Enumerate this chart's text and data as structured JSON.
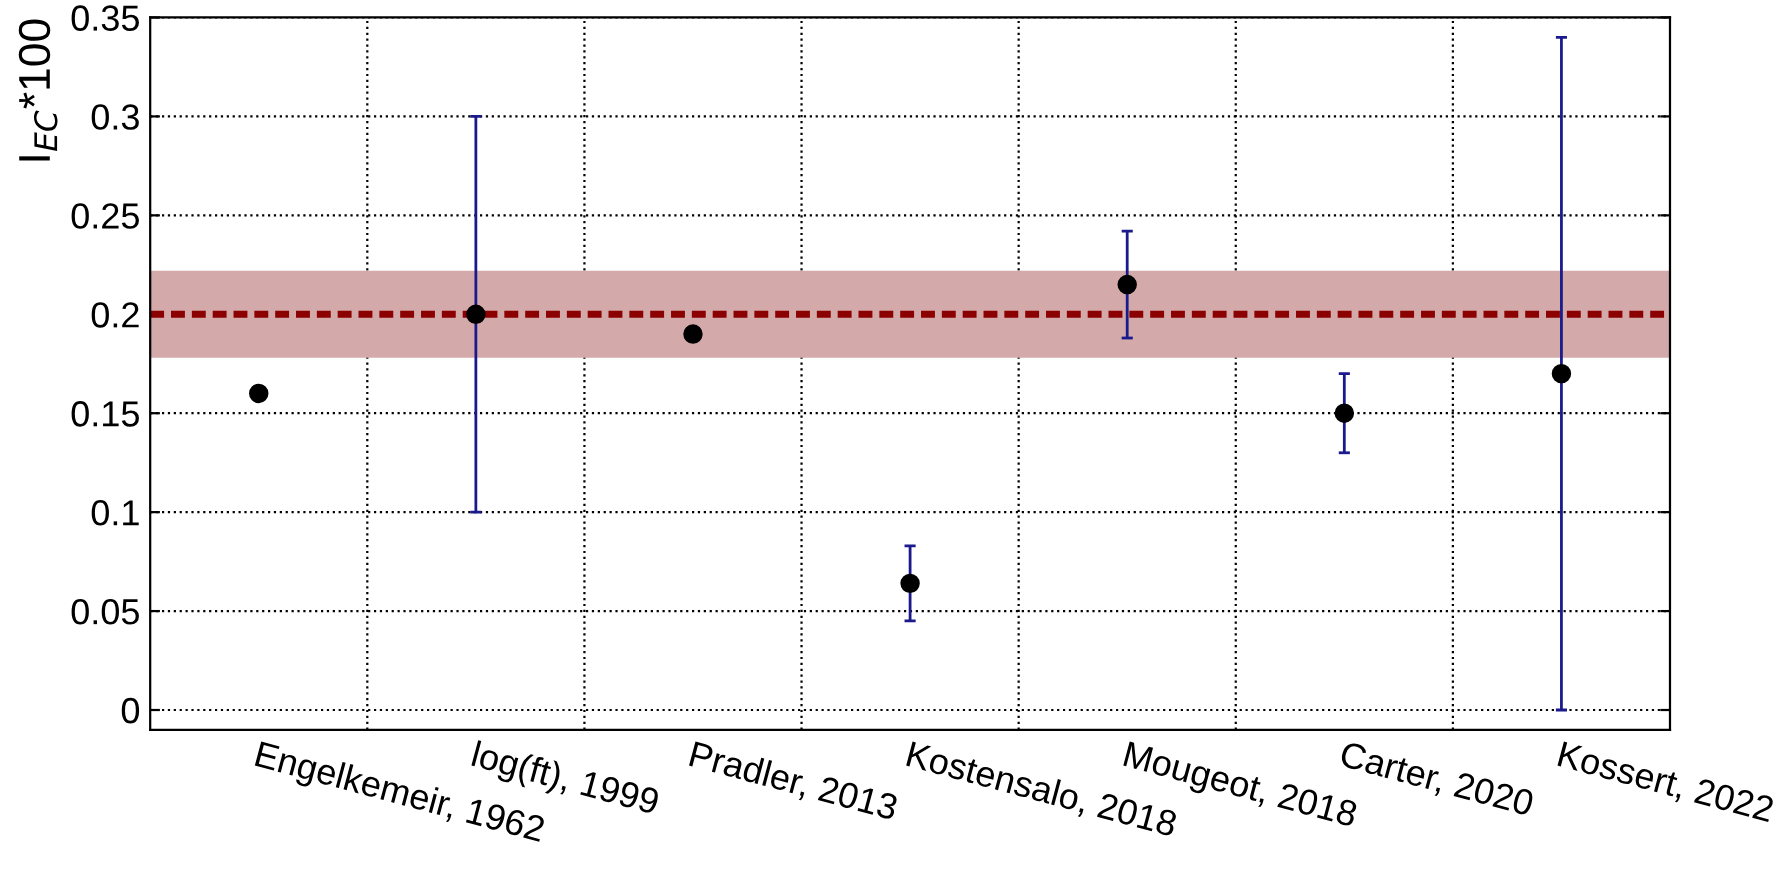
{
  "chart_data": {
    "type": "scatter",
    "ylabel": "I$_{EC}$*100",
    "categories": [
      "Engelkemeir, 1962",
      "log(ft), 1999",
      "Pradler, 2013",
      "Kostensalo, 2018",
      "Mougeot, 2018",
      "Carter, 2020",
      "Kossert, 2022"
    ],
    "series": [
      {
        "color": "#000000",
        "values": [
          0.16,
          0.2,
          0.19,
          0.064,
          0.215,
          0.15,
          0.17
        ],
        "errors": [
          null,
          0.1,
          null,
          0.019,
          0.027,
          0.02,
          0.17
        ]
      }
    ],
    "ylim": [
      -0.01,
      0.35
    ],
    "yticks": [
      0,
      0.05,
      0.1,
      0.15,
      0.2,
      0.25,
      0.3,
      0.35
    ],
    "ref_lines": [
      {
        "axis": "y",
        "value": 0.2,
        "color": "#8b0000",
        "line_style": "dashed"
      }
    ],
    "bands": [
      {
        "axis": "y",
        "from": 0.178,
        "to": 0.222,
        "color": "#d4a9aa"
      }
    ],
    "grid": true,
    "marker": "circle",
    "legend": false
  }
}
